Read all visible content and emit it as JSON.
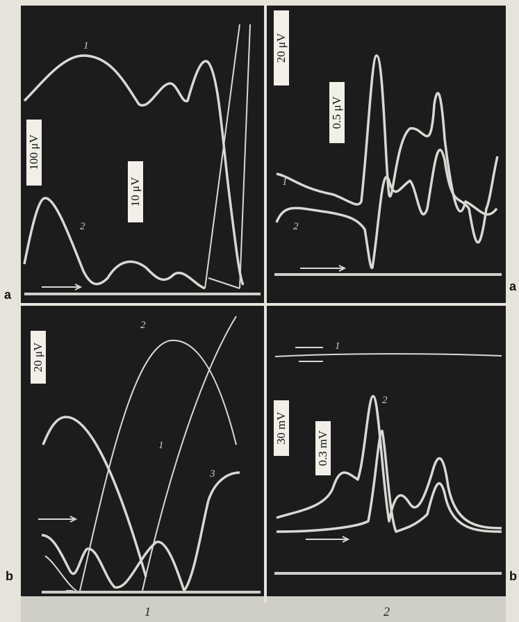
{
  "panels": [
    {
      "scale_labels": [
        "100 μV",
        "10 μV"
      ],
      "curve_labels": [
        "1",
        "2"
      ]
    },
    {
      "scale_labels": [
        "20 μV",
        "0.5 μV"
      ],
      "curve_labels": [
        "1",
        "2"
      ]
    },
    {
      "scale_labels": [
        "20 μV"
      ],
      "curve_labels": [
        "2",
        "1",
        "3"
      ]
    },
    {
      "scale_labels": [
        "30 mV",
        "0.3 mV"
      ],
      "curve_labels": [
        "1",
        "2"
      ]
    }
  ],
  "side_labels": {
    "left": [
      "a",
      "b"
    ],
    "right": [
      "a",
      "b"
    ]
  },
  "column_labels": [
    "1",
    "2"
  ]
}
